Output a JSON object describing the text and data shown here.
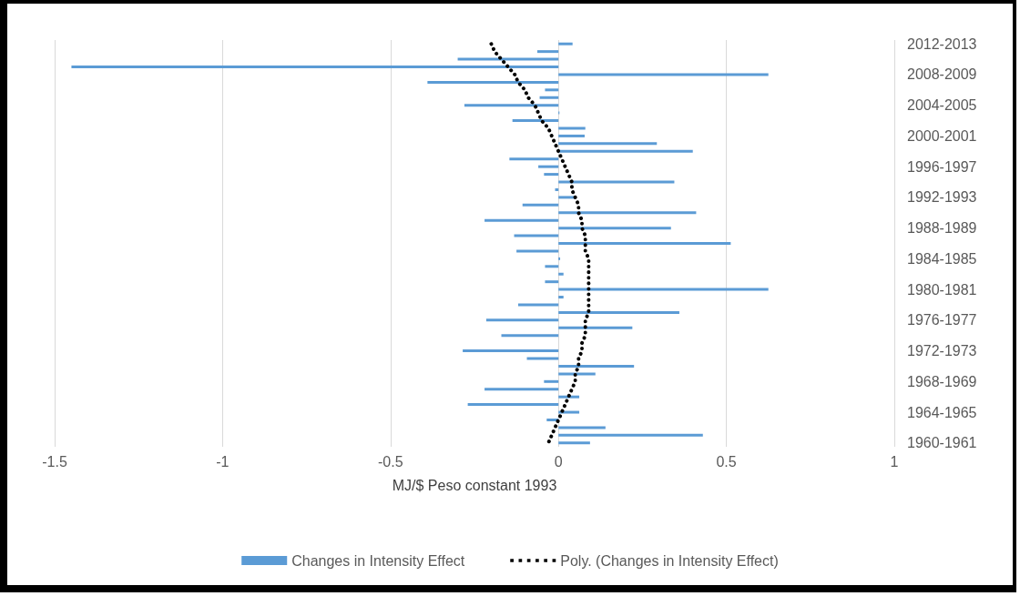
{
  "chart_data": {
    "type": "bar",
    "orientation": "horizontal",
    "xlabel": "MJ/$ Peso constant 1993",
    "categories": [
      "2012-2013",
      null,
      null,
      null,
      "2008-2009",
      null,
      null,
      null,
      "2004-2005",
      null,
      null,
      null,
      "2000-2001",
      null,
      null,
      null,
      "1996-1997",
      null,
      null,
      null,
      "1992-1993",
      null,
      null,
      null,
      "1988-1989",
      null,
      null,
      null,
      "1984-1985",
      null,
      null,
      null,
      "1980-1981",
      null,
      null,
      null,
      "1976-1977",
      null,
      null,
      null,
      "1972-1973",
      null,
      null,
      null,
      "1968-1969",
      null,
      null,
      null,
      "1964-1965",
      null,
      null,
      null,
      "1960-1961"
    ],
    "series": [
      {
        "name": "Changes in Intensity Effect",
        "color": "#5b9bd5",
        "values": [
          0.042,
          -0.063,
          -0.3,
          -1.45,
          0.625,
          -0.39,
          -0.04,
          -0.056,
          -0.28,
          0.003,
          -0.137,
          0.08,
          0.078,
          0.293,
          0.4,
          -0.146,
          -0.06,
          -0.043,
          0.345,
          -0.01,
          0.05,
          -0.107,
          0.41,
          -0.22,
          0.335,
          -0.132,
          0.513,
          -0.125,
          0.005,
          -0.04,
          0.015,
          -0.04,
          0.625,
          0.015,
          -0.12,
          0.36,
          -0.215,
          0.22,
          -0.17,
          0,
          -0.285,
          -0.094,
          0.225,
          0.11,
          -0.043,
          -0.22,
          0.062,
          -0.27,
          0.062,
          -0.035,
          0.14,
          0.43,
          0.094
        ]
      },
      {
        "name": "Poly. (Changes in Intensity Effect)",
        "type": "line",
        "color": "#000000",
        "line_style": "dotted",
        "marker": "none",
        "values": [
          -0.2,
          -0.19,
          -0.17,
          -0.15,
          -0.13,
          -0.12,
          -0.1,
          -0.09,
          -0.07,
          -0.06,
          -0.05,
          -0.03,
          -0.02,
          -0.01,
          0,
          0.01,
          0.02,
          0.03,
          0.04,
          0.04,
          0.05,
          0.06,
          0.06,
          0.07,
          0.07,
          0.08,
          0.08,
          0.08,
          0.09,
          0.09,
          0.09,
          0.09,
          0.09,
          0.09,
          0.09,
          0.09,
          0.08,
          0.08,
          0.08,
          0.07,
          0.07,
          0.06,
          0.06,
          0.05,
          0.05,
          0.04,
          0.03,
          0.02,
          0.01,
          0,
          -0.01,
          -0.02,
          -0.03
        ]
      }
    ],
    "xlim": [
      -1.5,
      1
    ],
    "xticks": [
      -1.5,
      -1,
      -0.5,
      0,
      0.5,
      1
    ],
    "grid": "x",
    "legend": "bottom"
  }
}
